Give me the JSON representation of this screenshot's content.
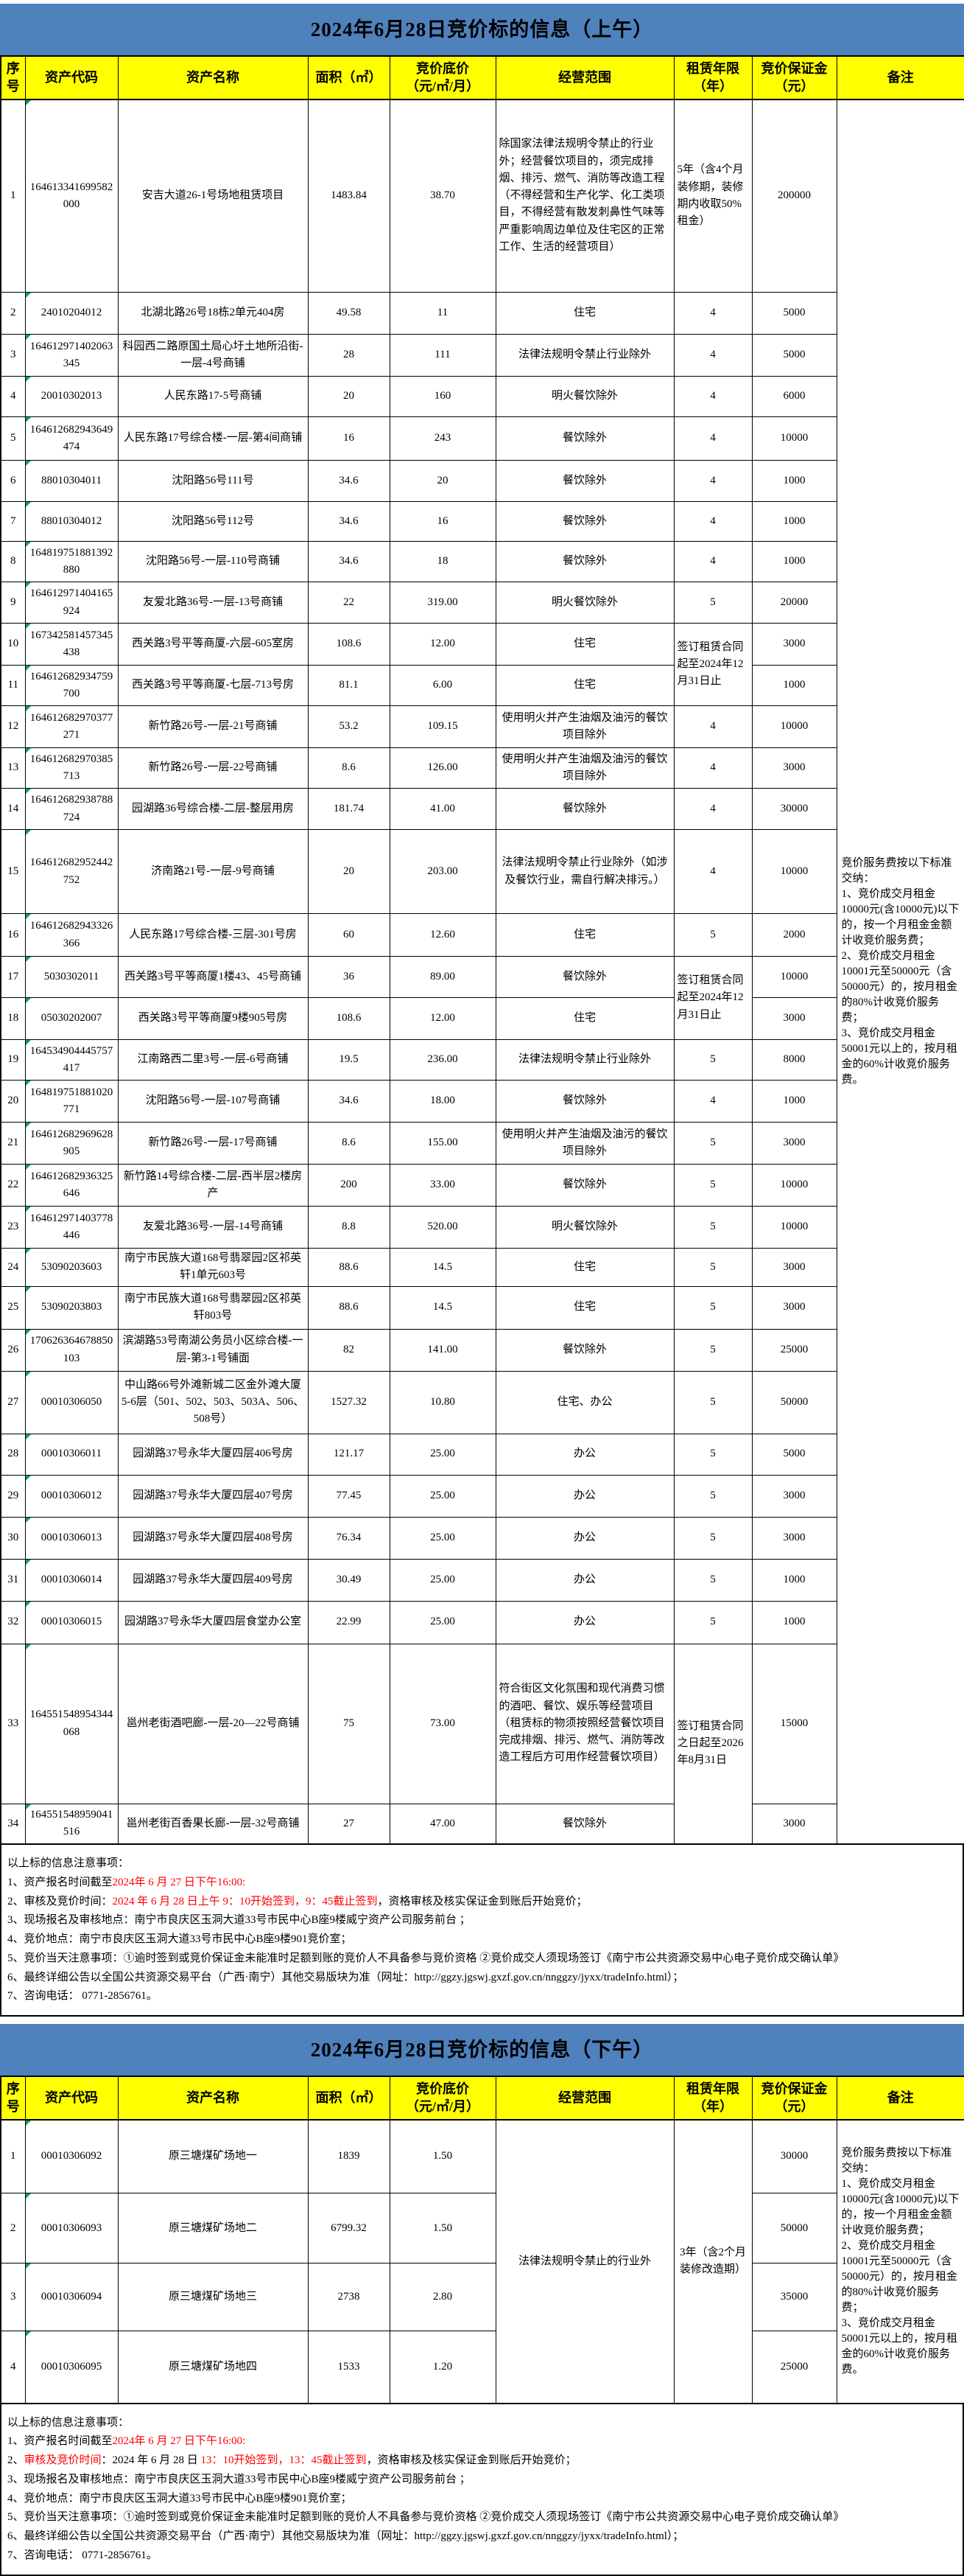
{
  "colors": {
    "banner_bg": "#4F81BD",
    "header_bg": "#FFFF00",
    "highlight_red": "#FF0000",
    "error_indicator_green": "#00A651"
  },
  "morning": {
    "title": "2024年6月28日竞价标的信息（上午）",
    "columns": [
      "序号",
      "资产代码",
      "资产名称",
      "面积（㎡）",
      "竞价底价\n（元/㎡/月）",
      "经营范围",
      "租赁年限\n（年）",
      "竞价保证金\n（元）",
      "备注"
    ],
    "rows": [
      {
        "no": "1",
        "code": "164613341699582000",
        "name": "安吉大道26-1号场地租赁项目",
        "area": "1483.84",
        "price": "38.70",
        "scope": "除国家法律法规明令禁止的行业外；经营餐饮项目的，须完成排烟、排污、燃气、消防等改造工程（不得经营和生产化学、化工类项目，不得经营有散发刺鼻性气味等严重影响周边单位及住宅区的正常工作、生活的经营项目）",
        "term": "5年（含4个月装修期，装修期内收取50%租金）",
        "deposit": "200000"
      },
      {
        "no": "2",
        "code": "24010204012",
        "name": "北湖北路26号18栋2单元404房",
        "area": "49.58",
        "price": "11",
        "scope": "住宅",
        "term": "4",
        "deposit": "5000"
      },
      {
        "no": "3",
        "code": "164612971402063345",
        "name": "科园西二路原国土局心圩土地所沿街-一层-4号商铺",
        "area": "28",
        "price": "111",
        "scope": "法律法规明令禁止行业除外",
        "term": "4",
        "deposit": "5000"
      },
      {
        "no": "4",
        "code": "20010302013",
        "name": "人民东路17-5号商铺",
        "area": "20",
        "price": "160",
        "scope": "明火餐饮除外",
        "term": "4",
        "deposit": "6000"
      },
      {
        "no": "5",
        "code": "164612682943649474",
        "name": "人民东路17号综合楼-一层-第4间商铺",
        "area": "16",
        "price": "243",
        "scope": "餐饮除外",
        "term": "4",
        "deposit": "10000"
      },
      {
        "no": "6",
        "code": "88010304011",
        "name": "沈阳路56号111号",
        "area": "34.6",
        "price": "20",
        "scope": "餐饮除外",
        "term": "4",
        "deposit": "1000"
      },
      {
        "no": "7",
        "code": "88010304012",
        "name": "沈阳路56号112号",
        "area": "34.6",
        "price": "16",
        "scope": "餐饮除外",
        "term": "4",
        "deposit": "1000"
      },
      {
        "no": "8",
        "code": "164819751881392880",
        "name": "沈阳路56号-一层-110号商铺",
        "area": "34.6",
        "price": "18",
        "scope": "餐饮除外",
        "term": "4",
        "deposit": "1000"
      },
      {
        "no": "9",
        "code": "164612971404165924",
        "name": "友爱北路36号-一层-13号商铺",
        "area": "22",
        "price": "319.00",
        "scope": "明火餐饮除外",
        "term": "5",
        "deposit": "20000"
      },
      {
        "no": "10",
        "code": "167342581457345438",
        "name": "西关路3号平等商厦-六层-605室房",
        "area": "108.6",
        "price": "12.00",
        "scope": "住宅",
        "term": "签订租赁合同起至2024年12月31日止",
        "term_span": 2,
        "deposit": "3000"
      },
      {
        "no": "11",
        "code": "164612682934759700",
        "name": "西关路3号平等商厦-七层-713号房",
        "area": "81.1",
        "price": "6.00",
        "scope": "住宅",
        "deposit": "1000"
      },
      {
        "no": "12",
        "code": "164612682970377271",
        "name": "新竹路26号-一层-21号商铺",
        "area": "53.2",
        "price": "109.15",
        "scope": "使用明火并产生油烟及油污的餐饮项目除外",
        "term": "4",
        "deposit": "10000"
      },
      {
        "no": "13",
        "code": "164612682970385713",
        "name": "新竹路26号-一层-22号商铺",
        "area": "8.6",
        "price": "126.00",
        "scope": "使用明火并产生油烟及油污的餐饮项目除外",
        "term": "4",
        "deposit": "3000"
      },
      {
        "no": "14",
        "code": "164612682938788724",
        "name": "园湖路36号综合楼-二层-整层用房",
        "area": "181.74",
        "price": "41.00",
        "scope": "餐饮除外",
        "term": "4",
        "deposit": "30000"
      },
      {
        "no": "15",
        "code": "164612682952442752",
        "name": "济南路21号-一层-9号商铺",
        "area": "20",
        "price": "203.00",
        "scope": "法律法规明令禁止行业除外（如涉及餐饮行业，需自行解决排污。）",
        "term": "4",
        "deposit": "10000"
      },
      {
        "no": "16",
        "code": "164612682943326366",
        "name": "人民东路17号综合楼-三层-301号房",
        "area": "60",
        "price": "12.60",
        "scope": "住宅",
        "term": "5",
        "deposit": "2000"
      },
      {
        "no": "17",
        "code": "5030302011",
        "name": "西关路3号平等商厦1楼43、45号商铺",
        "area": "36",
        "price": "89.00",
        "scope": "餐饮除外",
        "term": "签订租赁合同起至2024年12月31日止",
        "term_span": 2,
        "deposit": "10000"
      },
      {
        "no": "18",
        "code": "05030202007",
        "name": "西关路3号平等商厦9楼905号房",
        "area": "108.6",
        "price": "12.00",
        "scope": "住宅",
        "deposit": "3000"
      },
      {
        "no": "19",
        "code": "164534904445757417",
        "name": "江南路西二里3号-一层-6号商铺",
        "area": "19.5",
        "price": "236.00",
        "scope": "法律法规明令禁止行业除外",
        "term": "5",
        "deposit": "8000"
      },
      {
        "no": "20",
        "code": "164819751881020771",
        "name": "沈阳路56号-一层-107号商铺",
        "area": "34.6",
        "price": "18.00",
        "scope": "餐饮除外",
        "term": "4",
        "deposit": "1000"
      },
      {
        "no": "21",
        "code": "164612682969628905",
        "name": "新竹路26号-一层-17号商铺",
        "area": "8.6",
        "price": "155.00",
        "scope": "使用明火并产生油烟及油污的餐饮项目除外",
        "term": "5",
        "deposit": "3000"
      },
      {
        "no": "22",
        "code": "164612682936325646",
        "name": "新竹路14号综合楼-二层-西半层2楼房产",
        "area": "200",
        "price": "33.00",
        "scope": "餐饮除外",
        "term": "5",
        "deposit": "10000"
      },
      {
        "no": "23",
        "code": "164612971403778446",
        "name": "友爱北路36号-一层-14号商铺",
        "area": "8.8",
        "price": "520.00",
        "scope": "明火餐饮除外",
        "term": "5",
        "deposit": "10000"
      },
      {
        "no": "24",
        "code": "53090203603",
        "name": "南宁市民族大道168号翡翠园2区祁英轩1单元603号",
        "area": "88.6",
        "price": "14.5",
        "scope": "住宅",
        "term": "5",
        "deposit": "3000"
      },
      {
        "no": "25",
        "code": "53090203803",
        "name": "南宁市民族大道168号翡翠园2区祁英轩803号",
        "area": "88.6",
        "price": "14.5",
        "scope": "住宅",
        "term": "5",
        "deposit": "3000"
      },
      {
        "no": "26",
        "code": "170626364678850103",
        "name": "滨湖路53号南湖公务员小区综合楼-一层-第3-1号铺面",
        "area": "82",
        "price": "141.00",
        "scope": "餐饮除外",
        "term": "5",
        "deposit": "25000"
      },
      {
        "no": "27",
        "code": "00010306050",
        "name": "中山路66号外滩新城二区金外滩大厦5-6层（501、502、503、503A、506、508号）",
        "area": "1527.32",
        "price": "10.80",
        "scope": "住宅、办公",
        "term": "5",
        "deposit": "50000"
      },
      {
        "no": "28",
        "code": "00010306011",
        "name": "园湖路37号永华大厦四层406号房",
        "area": "121.17",
        "price": "25.00",
        "scope": "办公",
        "term": "5",
        "deposit": "5000"
      },
      {
        "no": "29",
        "code": "00010306012",
        "name": "园湖路37号永华大厦四层407号房",
        "area": "77.45",
        "price": "25.00",
        "scope": "办公",
        "term": "5",
        "deposit": "3000"
      },
      {
        "no": "30",
        "code": "00010306013",
        "name": "园湖路37号永华大厦四层408号房",
        "area": "76.34",
        "price": "25.00",
        "scope": "办公",
        "term": "5",
        "deposit": "3000"
      },
      {
        "no": "31",
        "code": "00010306014",
        "name": "园湖路37号永华大厦四层409号房",
        "area": "30.49",
        "price": "25.00",
        "scope": "办公",
        "term": "5",
        "deposit": "1000"
      },
      {
        "no": "32",
        "code": "00010306015",
        "name": "园湖路37号永华大厦四层食堂办公室",
        "area": "22.99",
        "price": "25.00",
        "scope": "办公",
        "term": "5",
        "deposit": "1000"
      },
      {
        "no": "33",
        "code": "164551548954344068",
        "name": "邕州老街酒吧廊-一层-20—22号商铺",
        "area": "75",
        "price": "73.00",
        "scope": "符合街区文化氛围和现代消费习惯的酒吧、餐饮、娱乐等经营项目（租赁标的物须按照经营餐饮项目完成排烟、排污、燃气、消防等改造工程后方可用作经营餐饮项目）",
        "term": "签订租赁合同之日起至2026年8月31日",
        "term_span": 2,
        "deposit": "15000"
      },
      {
        "no": "34",
        "code": "164551548959041516",
        "name": "邕州老街百香果长廊-一层-32号商铺",
        "area": "27",
        "price": "47.00",
        "scope": "餐饮除外",
        "deposit": "3000"
      }
    ],
    "remark": "竞价服务费按以下标准交纳：\n1、竞价成交月租金10000元(含10000元)以下的，按一个月租金金额计收竞价服务费；\n2、竞价成交月租金10001元至50000元（含50000元）的，按月租金的80%计收竞价服务费；\n3、竞价成交月租金50001元以上的，按月租金的60%计收竞价服务费。",
    "notes_title": "以上标的信息注意事项：",
    "notes": [
      [
        {
          "t": "1、资产报名时间截至"
        },
        {
          "t": "2024年 6 月 27 日下午16:00:",
          "red": true
        }
      ],
      [
        {
          "t": "2、审核及竞价时间："
        },
        {
          "t": "2024 年 6 月 28 日上午 9：10开始签到，9：45截止签到",
          "red": true
        },
        {
          "t": "，资格审核及核实保证金到账后开始竞价；"
        }
      ],
      [
        {
          "t": "3、现场报名及审核地点：南宁市良庆区玉洞大道33号市民中心B座9楼威宁资产公司服务前台 ；"
        }
      ],
      [
        {
          "t": "4、竞价地点：南宁市良庆区玉洞大道33号市民中心B座9楼901竞价室；"
        }
      ],
      [
        {
          "t": "5、竞价当天注意事项：①逾时签到或竞价保证金未能准时足额到账的竞价人不具备参与竞价资格 ②竞价成交人须现场签订《南宁市公共资源交易中心电子竞价成交确认单》"
        }
      ],
      [
        {
          "t": "6、最终详细公告以全国公共资源交易平台（广西·南宁）其他交易版块为准（网址：http://ggzy.jgswj.gxzf.gov.cn/nnggzy/jyxx/tradeInfo.html）；"
        }
      ],
      [
        {
          "t": "7、咨询电话： 0771-2856761。"
        }
      ]
    ]
  },
  "afternoon": {
    "title": "2024年6月28日竞价标的信息（下午）",
    "columns": [
      "序号",
      "资产代码",
      "资产名称",
      "面积（㎡）",
      "竞价底价\n（元/㎡/月）",
      "经营范围",
      "租赁年限\n（年）",
      "竞价保证金\n（元）",
      "备注"
    ],
    "rows": [
      {
        "no": "1",
        "code": "00010306092",
        "name": "原三塘煤矿场地一",
        "area": "1839",
        "price": "1.50",
        "scope": "法律法规明令禁止的行业外",
        "scope_span": 4,
        "term": "3年（含2个月装修改造期）",
        "term_span": 4,
        "deposit": "30000"
      },
      {
        "no": "2",
        "code": "00010306093",
        "name": "原三塘煤矿场地二",
        "area": "6799.32",
        "price": "1.50",
        "deposit": "50000"
      },
      {
        "no": "3",
        "code": "00010306094",
        "name": "原三塘煤矿场地三",
        "area": "2738",
        "price": "2.80",
        "deposit": "35000"
      },
      {
        "no": "4",
        "code": "00010306095",
        "name": "原三塘煤矿场地四",
        "area": "1533",
        "price": "1.20",
        "deposit": "25000"
      }
    ],
    "remark": "竞价服务费按以下标准交纳：\n1、竞价成交月租金10000元(含10000元)以下的，按一个月租金金额计收竞价服务费；\n2、竞价成交月租金10001元至50000元（含50000元）的，按月租金的80%计收竞价服务费；\n3、竞价成交月租金50001元以上的，按月租金的60%计收竞价服务费。",
    "notes_title": "以上标的信息注意事项：",
    "notes": [
      [
        {
          "t": "1、资产报名时间截至"
        },
        {
          "t": "2024年 6 月 27 日下午16:00:",
          "red": true
        }
      ],
      [
        {
          "t": "2、"
        },
        {
          "t": "审核及竞价时间",
          "red": true
        },
        {
          "t": "：2024 年 6 月 28 日 "
        },
        {
          "t": "13：10开始签到，13：45截止签到",
          "red": true
        },
        {
          "t": "，资格审核及核实保证金到账后开始竞价；"
        }
      ],
      [
        {
          "t": "3、现场报名及审核地点：南宁市良庆区玉洞大道33号市民中心B座9楼威宁资产公司服务前台 ；"
        }
      ],
      [
        {
          "t": "4、竞价地点：南宁市良庆区玉洞大道33号市民中心B座9楼901竞价室；"
        }
      ],
      [
        {
          "t": "5、竞价当天注意事项：①逾时签到或竞价保证金未能准时足额到账的竞价人不具备参与竞价资格 ②竞价成交人须现场签订《南宁市公共资源交易中心电子竞价成交确认单》"
        }
      ],
      [
        {
          "t": "6、最终详细公告以全国公共资源交易平台（广西·南宁）其他交易版块为准（网址：http://ggzy.jgswj.gxzf.gov.cn/nnggzy/jyxx/tradeInfo.html）；"
        }
      ],
      [
        {
          "t": "7、咨询电话： 0771-2856761。"
        }
      ]
    ]
  }
}
